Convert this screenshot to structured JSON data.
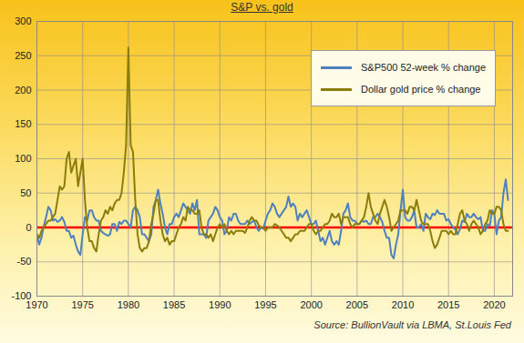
{
  "chart_data": {
    "type": "line",
    "title": "S&P vs. gold",
    "caption": "Source: BullionVault via LBMA, St.Louis Fed",
    "x": [
      1970,
      1970.25,
      1970.5,
      1970.75,
      1971,
      1971.25,
      1971.5,
      1971.75,
      1972,
      1972.25,
      1972.5,
      1972.75,
      1973,
      1973.25,
      1973.5,
      1973.75,
      1974,
      1974.25,
      1974.5,
      1974.75,
      1975,
      1975.25,
      1975.5,
      1975.75,
      1976,
      1976.25,
      1976.5,
      1976.75,
      1977,
      1977.25,
      1977.5,
      1977.75,
      1978,
      1978.25,
      1978.5,
      1978.75,
      1979,
      1979.25,
      1979.5,
      1979.75,
      1980,
      1980.25,
      1980.5,
      1980.75,
      1981,
      1981.25,
      1981.5,
      1981.75,
      1982,
      1982.25,
      1982.5,
      1982.75,
      1983,
      1983.25,
      1983.5,
      1983.75,
      1984,
      1984.25,
      1984.5,
      1984.75,
      1985,
      1985.25,
      1985.5,
      1985.75,
      1986,
      1986.25,
      1986.5,
      1986.75,
      1987,
      1987.25,
      1987.5,
      1987.75,
      1988,
      1988.25,
      1988.5,
      1988.75,
      1989,
      1989.25,
      1989.5,
      1989.75,
      1990,
      1990.25,
      1990.5,
      1990.75,
      1991,
      1991.25,
      1991.5,
      1991.75,
      1992,
      1992.25,
      1992.5,
      1992.75,
      1993,
      1993.25,
      1993.5,
      1993.75,
      1994,
      1994.25,
      1994.5,
      1994.75,
      1995,
      1995.25,
      1995.5,
      1995.75,
      1996,
      1996.25,
      1996.5,
      1996.75,
      1997,
      1997.25,
      1997.5,
      1997.75,
      1998,
      1998.25,
      1998.5,
      1998.75,
      1999,
      1999.25,
      1999.5,
      1999.75,
      2000,
      2000.25,
      2000.5,
      2000.75,
      2001,
      2001.25,
      2001.5,
      2001.75,
      2002,
      2002.25,
      2002.5,
      2002.75,
      2003,
      2003.25,
      2003.5,
      2003.75,
      2004,
      2004.25,
      2004.5,
      2004.75,
      2005,
      2005.25,
      2005.5,
      2005.75,
      2006,
      2006.25,
      2006.5,
      2006.75,
      2007,
      2007.25,
      2007.5,
      2007.75,
      2008,
      2008.25,
      2008.5,
      2008.75,
      2009,
      2009.25,
      2009.5,
      2009.75,
      2010,
      2010.25,
      2010.5,
      2010.75,
      2011,
      2011.25,
      2011.5,
      2011.75,
      2012,
      2012.25,
      2012.5,
      2012.75,
      2013,
      2013.25,
      2013.5,
      2013.75,
      2014,
      2014.25,
      2014.5,
      2014.75,
      2015,
      2015.25,
      2015.5,
      2015.75,
      2016,
      2016.25,
      2016.5,
      2016.75,
      2017,
      2017.25,
      2017.5,
      2017.75,
      2018,
      2018.25,
      2018.5,
      2018.75,
      2019,
      2019.25,
      2019.5,
      2019.75,
      2020,
      2020.25,
      2020.5,
      2020.75,
      2021,
      2021.25,
      2021.5
    ],
    "series": [
      {
        "name": "S&P500 52-week % change",
        "color": "#4f81bd",
        "values": [
          -10,
          -25,
          -15,
          2,
          15,
          30,
          25,
          10,
          12,
          8,
          10,
          15,
          8,
          -5,
          -5,
          -15,
          -12,
          -25,
          -35,
          -40,
          -10,
          15,
          10,
          25,
          25,
          15,
          10,
          10,
          -5,
          -8,
          -10,
          -12,
          -10,
          5,
          5,
          -5,
          8,
          5,
          10,
          10,
          5,
          0,
          25,
          30,
          25,
          15,
          -10,
          -10,
          -15,
          -20,
          -10,
          30,
          40,
          55,
          35,
          20,
          0,
          -10,
          5,
          5,
          15,
          20,
          15,
          25,
          35,
          30,
          25,
          20,
          35,
          25,
          40,
          -10,
          -10,
          -10,
          -15,
          10,
          15,
          20,
          30,
          25,
          15,
          10,
          -10,
          -5,
          15,
          10,
          20,
          20,
          10,
          5,
          5,
          5,
          10,
          5,
          8,
          10,
          0,
          -5,
          0,
          -2,
          10,
          20,
          25,
          35,
          30,
          20,
          15,
          20,
          25,
          30,
          45,
          30,
          35,
          30,
          10,
          20,
          15,
          20,
          25,
          15,
          5,
          5,
          10,
          -5,
          -20,
          -15,
          -25,
          -15,
          -5,
          -20,
          -25,
          -20,
          -25,
          -5,
          20,
          25,
          35,
          15,
          10,
          10,
          5,
          5,
          10,
          8,
          10,
          5,
          5,
          15,
          15,
          20,
          15,
          8,
          -5,
          -15,
          -15,
          -40,
          -45,
          -25,
          -10,
          25,
          55,
          15,
          10,
          10,
          15,
          25,
          0,
          0,
          5,
          -5,
          20,
          15,
          12,
          20,
          18,
          25,
          20,
          20,
          20,
          10,
          12,
          5,
          0,
          -3,
          -10,
          -2,
          10,
          8,
          20,
          15,
          15,
          20,
          15,
          12,
          15,
          -5,
          -5,
          5,
          2,
          25,
          20,
          -10,
          10,
          15,
          50,
          70,
          40
        ]
      },
      {
        "name": "Dollar gold price % change",
        "color": "#8b7d0b",
        "values": [
          -10,
          -15,
          -5,
          0,
          5,
          10,
          10,
          15,
          20,
          40,
          60,
          55,
          60,
          100,
          110,
          80,
          90,
          100,
          60,
          80,
          100,
          40,
          0,
          -20,
          -20,
          -30,
          -35,
          -10,
          10,
          15,
          25,
          20,
          30,
          25,
          35,
          40,
          40,
          50,
          80,
          120,
          262,
          120,
          110,
          40,
          -10,
          -30,
          -35,
          -30,
          -30,
          -20,
          5,
          20,
          40,
          40,
          10,
          -10,
          -20,
          -15,
          -25,
          -20,
          -20,
          -10,
          0,
          5,
          15,
          10,
          30,
          25,
          25,
          20,
          20,
          25,
          0,
          -10,
          -10,
          -15,
          -10,
          -20,
          -10,
          0,
          5,
          0,
          5,
          -5,
          -10,
          -5,
          -10,
          -5,
          -5,
          -5,
          -5,
          -8,
          0,
          10,
          15,
          10,
          10,
          3,
          0,
          0,
          -5,
          0,
          0,
          0,
          5,
          3,
          0,
          -5,
          -10,
          -15,
          -15,
          -20,
          -15,
          -10,
          -10,
          -5,
          -5,
          -5,
          0,
          5,
          5,
          -5,
          -10,
          -5,
          -5,
          0,
          5,
          5,
          10,
          20,
          15,
          15,
          20,
          5,
          15,
          15,
          15,
          5,
          0,
          5,
          5,
          5,
          10,
          15,
          30,
          50,
          30,
          20,
          10,
          5,
          20,
          30,
          40,
          30,
          15,
          -5,
          0,
          5,
          10,
          25,
          25,
          25,
          20,
          30,
          30,
          25,
          40,
          25,
          10,
          5,
          5,
          5,
          -5,
          -20,
          -30,
          -25,
          -15,
          -5,
          -5,
          -5,
          -10,
          -5,
          -10,
          -10,
          5,
          20,
          25,
          10,
          5,
          -5,
          5,
          10,
          5,
          0,
          -10,
          -5,
          5,
          10,
          25,
          20,
          20,
          30,
          30,
          25,
          5,
          -5,
          -5
        ]
      }
    ],
    "xlim": [
      1970,
      2022
    ],
    "xticks": [
      1970,
      1975,
      1980,
      1985,
      1990,
      1995,
      2000,
      2005,
      2010,
      2015,
      2020
    ],
    "ylim": [
      -100,
      300
    ],
    "yticks": [
      -100,
      -50,
      0,
      50,
      100,
      150,
      200,
      250,
      300
    ],
    "reference_lines": [
      {
        "value": 0,
        "color": "#ff0000"
      }
    ],
    "grid": true,
    "legend": "top-right"
  }
}
